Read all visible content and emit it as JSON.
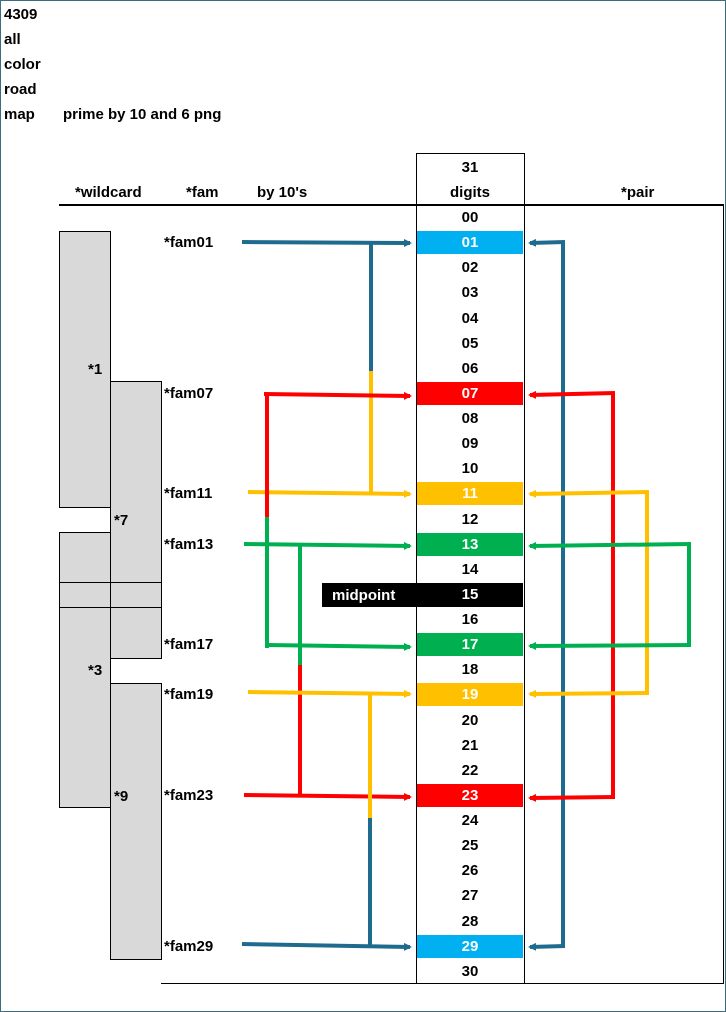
{
  "header": {
    "title_lines": [
      "4309",
      "all",
      "color",
      "road",
      "map"
    ],
    "subtitle": "prime by 10 and 6 png"
  },
  "columns": {
    "wildcard": "*wildcard",
    "fam": "*fam",
    "by10": "by 10's",
    "count": "31",
    "digits": "digits",
    "pair": "*pair"
  },
  "digits": [
    "00",
    "01",
    "02",
    "03",
    "04",
    "05",
    "06",
    "07",
    "08",
    "09",
    "10",
    "11",
    "12",
    "13",
    "14",
    "15",
    "16",
    "17",
    "18",
    "19",
    "20",
    "21",
    "22",
    "23",
    "24",
    "25",
    "26",
    "27",
    "28",
    "29",
    "30"
  ],
  "highlights": {
    "01": "#00b0f0",
    "07": "#ff0000",
    "11": "#ffc000",
    "13": "#00b050",
    "15": "#000000",
    "17": "#00b050",
    "19": "#ffc000",
    "23": "#ff0000",
    "29": "#00b0f0"
  },
  "midpoint": "midpoint",
  "families": [
    {
      "label": "*fam01",
      "digit": "01"
    },
    {
      "label": "*fam07",
      "digit": "07"
    },
    {
      "label": "*fam11",
      "digit": "11"
    },
    {
      "label": "*fam13",
      "digit": "13"
    },
    {
      "label": "*fam17",
      "digit": "17"
    },
    {
      "label": "*fam19",
      "digit": "19"
    },
    {
      "label": "*fam23",
      "digit": "23"
    },
    {
      "label": "*fam29",
      "digit": "29"
    }
  ],
  "wildcards": [
    "*1",
    "*7",
    "*3",
    "*9"
  ],
  "colors": {
    "blue": "#1f6b8e",
    "red": "#ff0000",
    "yellow": "#ffc000",
    "green": "#00b050",
    "cyan": "#00b0f0",
    "wildcard_fill": "#d9d9d9"
  }
}
